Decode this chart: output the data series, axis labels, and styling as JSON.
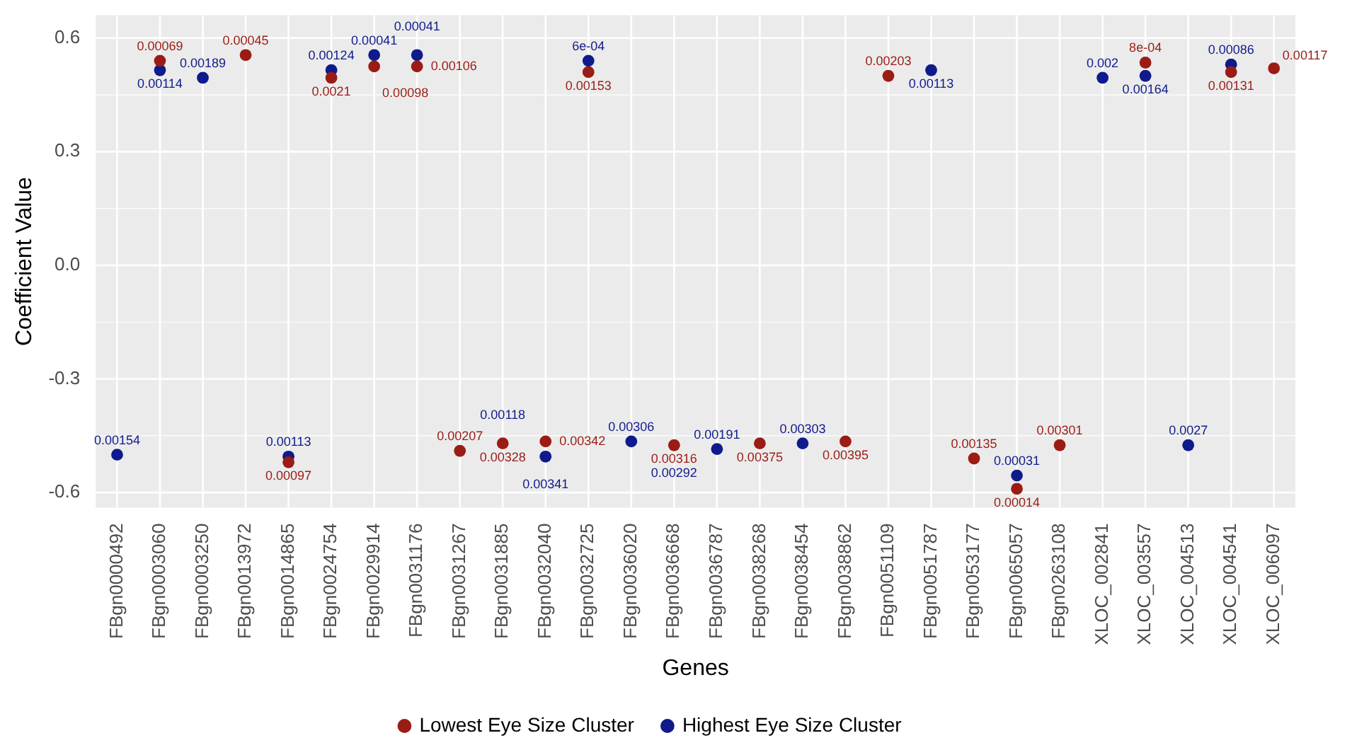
{
  "chart_data": {
    "type": "scatter",
    "xlabel": "Genes",
    "ylabel": "Coefficient Value",
    "categories": [
      "FBgn0000492",
      "FBgn0003060",
      "FBgn0003250",
      "FBgn0013972",
      "FBgn0014865",
      "FBgn0024754",
      "FBgn0029914",
      "FBgn0031176",
      "FBgn0031267",
      "FBgn0031885",
      "FBgn0032040",
      "FBgn0032725",
      "FBgn0036020",
      "FBgn0036668",
      "FBgn0036787",
      "FBgn0038268",
      "FBgn0038454",
      "FBgn0038862",
      "FBgn0051109",
      "FBgn0051787",
      "FBgn0053177",
      "FBgn0065057",
      "FBgn0263108",
      "XLOC_002841",
      "XLOC_003557",
      "XLOC_004513",
      "XLOC_004541",
      "XLOC_006097"
    ],
    "series": [
      {
        "name": "Lowest Eye Size Cluster",
        "color": "#9b1c14",
        "values": [
          null,
          0.54,
          null,
          0.555,
          -0.52,
          0.495,
          0.525,
          0.525,
          -0.49,
          -0.47,
          -0.465,
          0.51,
          null,
          -0.475,
          null,
          -0.47,
          null,
          -0.465,
          0.5,
          null,
          -0.51,
          -0.59,
          -0.475,
          null,
          0.535,
          null,
          0.51,
          0.52
        ]
      },
      {
        "name": "Highest Eye Size Cluster",
        "color": "#0f1a8c",
        "values": [
          -0.5,
          0.515,
          0.495,
          null,
          -0.505,
          0.515,
          0.555,
          0.555,
          null,
          null,
          -0.505,
          0.54,
          -0.465,
          null,
          -0.485,
          null,
          -0.47,
          null,
          null,
          0.515,
          null,
          -0.555,
          null,
          0.495,
          0.5,
          -0.475,
          0.53,
          null
        ]
      }
    ],
    "annotations": [
      {
        "text": "0.00154",
        "x": "FBgn0000492",
        "y": -0.5
      },
      {
        "text": "0.00069",
        "x": "FBgn0003060",
        "y": 0.54
      },
      {
        "text": "0.00114",
        "x": "FBgn0003060",
        "y": 0.515
      },
      {
        "text": "0.00189",
        "x": "FBgn0003250",
        "y": 0.495
      },
      {
        "text": "0.00045",
        "x": "FBgn0013972",
        "y": 0.555
      },
      {
        "text": "0.00113",
        "x": "FBgn0014865",
        "y": -0.505
      },
      {
        "text": "0.00097",
        "x": "FBgn0014865",
        "y": -0.52
      },
      {
        "text": "0.00124",
        "x": "FBgn0024754",
        "y": 0.515
      },
      {
        "text": "0.0021",
        "x": "FBgn0024754",
        "y": 0.495
      },
      {
        "text": "0.00041",
        "x": "FBgn0029914",
        "y": 0.555
      },
      {
        "text": "0.00098",
        "x": "FBgn0029914",
        "y": 0.525
      },
      {
        "text": "0.00041",
        "x": "FBgn0031176",
        "y": 0.555
      },
      {
        "text": "0.00106",
        "x": "FBgn0031176",
        "y": 0.525
      },
      {
        "text": "0.00207",
        "x": "FBgn0031267",
        "y": -0.49
      },
      {
        "text": "0.00328",
        "x": "FBgn0031885",
        "y": -0.47
      },
      {
        "text": "0.00118",
        "x": "FBgn0031885",
        "y": -0.47
      },
      {
        "text": "0.00342",
        "x": "FBgn0032040",
        "y": -0.465
      },
      {
        "text": "0.00341",
        "x": "FBgn0032040",
        "y": -0.505
      },
      {
        "text": "0.00153",
        "x": "FBgn0032725",
        "y": 0.51
      },
      {
        "text": "6e-04",
        "x": "FBgn0032725",
        "y": 0.54
      },
      {
        "text": "0.00306",
        "x": "FBgn0036020",
        "y": -0.465
      },
      {
        "text": "0.00316",
        "x": "FBgn0036668",
        "y": -0.475
      },
      {
        "text": "0.00292",
        "x": "FBgn0036668",
        "y": -0.475
      },
      {
        "text": "0.00191",
        "x": "FBgn0036787",
        "y": -0.485
      },
      {
        "text": "0.00375",
        "x": "FBgn0038268",
        "y": -0.47
      },
      {
        "text": "0.00303",
        "x": "FBgn0038454",
        "y": -0.47
      },
      {
        "text": "0.00395",
        "x": "FBgn0038862",
        "y": -0.465
      },
      {
        "text": "0.00203",
        "x": "FBgn0051109",
        "y": 0.5
      },
      {
        "text": "0.00113",
        "x": "FBgn0051787",
        "y": 0.515
      },
      {
        "text": "0.00135",
        "x": "FBgn0053177",
        "y": -0.51
      },
      {
        "text": "0.00031",
        "x": "FBgn0065057",
        "y": -0.555
      },
      {
        "text": "0.00014",
        "x": "FBgn0065057",
        "y": -0.59
      },
      {
        "text": "0.00301",
        "x": "FBgn0263108",
        "y": -0.475
      },
      {
        "text": "0.002",
        "x": "XLOC_002841",
        "y": 0.495
      },
      {
        "text": "8e-04",
        "x": "XLOC_003557",
        "y": 0.535
      },
      {
        "text": "0.00164",
        "x": "XLOC_003557",
        "y": 0.5
      },
      {
        "text": "0.0027",
        "x": "XLOC_004513",
        "y": -0.475
      },
      {
        "text": "0.00086",
        "x": "XLOC_004541",
        "y": 0.53
      },
      {
        "text": "0.00131",
        "x": "XLOC_004541",
        "y": 0.51
      },
      {
        "text": "0.00117",
        "x": "XLOC_006097",
        "y": 0.52
      }
    ],
    "ylim": [
      -0.64,
      0.66
    ],
    "yticks": [
      {
        "value": -0.6,
        "label": "-0.6"
      },
      {
        "value": -0.3,
        "label": "-0.3"
      },
      {
        "value": 0,
        "label": "0.0"
      },
      {
        "value": 0.3,
        "label": "0.3"
      },
      {
        "value": 0.6,
        "label": "0.6"
      }
    ],
    "grid": true,
    "legend": "bottom",
    "marker": "circle"
  }
}
